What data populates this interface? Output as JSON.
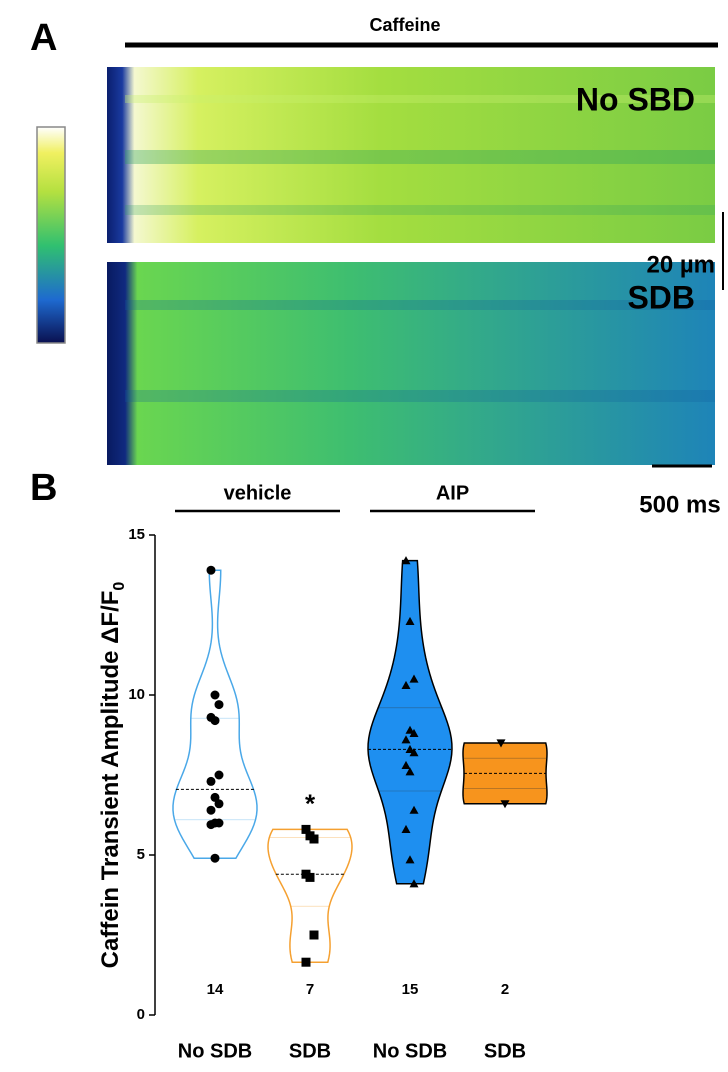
{
  "panel_a": {
    "label": "A",
    "treatment": "Caffeine",
    "rows": [
      "No SBD",
      "SDB"
    ],
    "scale_vertical": "20 µm",
    "scale_horizontal": "500 ms"
  },
  "chart_data": {
    "type": "violin",
    "panel_label": "B",
    "y_label": "Caffein Transient Amplitude ΔF/F",
    "y_label_subscript": "0",
    "ylim": [
      0,
      15
    ],
    "yticks": [
      0,
      5,
      10,
      15
    ],
    "groups": [
      "vehicle",
      "AIP"
    ],
    "series": [
      {
        "name": "No SDB",
        "color": "#4aa8e8",
        "filled": false,
        "marker": "circle",
        "n": 14,
        "values": [
          13.9,
          10.0,
          9.7,
          9.3,
          9.2,
          7.5,
          7.3,
          6.8,
          6.6,
          6.4,
          6.0,
          6.0,
          5.95,
          4.9
        ]
      },
      {
        "name": "SDB",
        "color": "#f5a030",
        "filled": false,
        "marker": "square",
        "n": 7,
        "annotation": "*",
        "values": [
          5.8,
          5.6,
          5.5,
          4.4,
          4.3,
          2.5,
          1.65
        ]
      },
      {
        "name": "No SDB",
        "color": "#1e8ff0",
        "filled": true,
        "marker": "triangle",
        "n": 15,
        "values": [
          14.2,
          12.3,
          10.5,
          10.3,
          8.9,
          8.8,
          8.6,
          8.3,
          8.2,
          7.8,
          7.6,
          6.4,
          5.8,
          4.85,
          4.1
        ]
      },
      {
        "name": "SDB",
        "color": "#f7941d",
        "filled": true,
        "marker": "triangle-down",
        "n": 2,
        "values": [
          8.5,
          6.6
        ]
      }
    ]
  }
}
